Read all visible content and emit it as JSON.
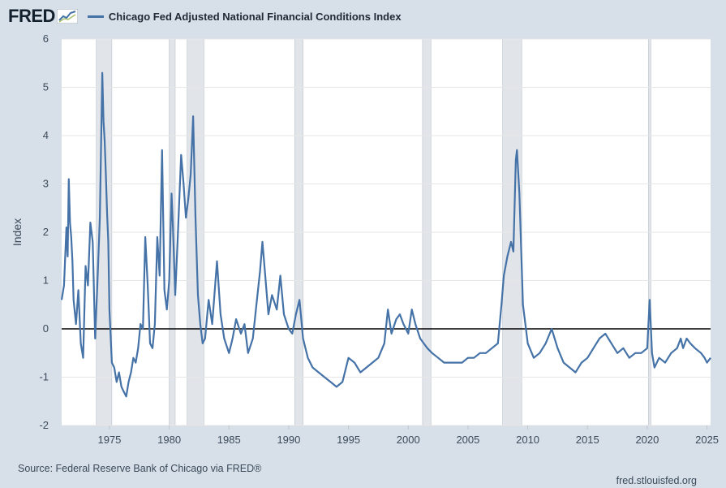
{
  "header": {
    "logo_text": "FRED",
    "logo_icon": "fred-graph-icon",
    "series_title": "Chicago Fed Adjusted National Financial Conditions Index"
  },
  "footer": {
    "source": "Source: Federal Reserve Bank of Chicago via FRED®",
    "url": "fred.stlouisfed.org"
  },
  "colors": {
    "background": "#d7dfe8",
    "plot_background": "#ffffff",
    "series": "#4572a7",
    "recession": "#e1e5ea",
    "grid": "#e6e6e6",
    "zero_line": "#000000"
  },
  "chart_data": {
    "type": "line",
    "title": "Chicago Fed Adjusted National Financial Conditions Index",
    "xlabel": "",
    "ylabel": "Index",
    "xlim": [
      1971.0,
      2025.3
    ],
    "ylim": [
      -2,
      6
    ],
    "x_ticks": [
      1975,
      1980,
      1985,
      1990,
      1995,
      2000,
      2005,
      2010,
      2015,
      2020,
      2025
    ],
    "y_ticks": [
      -2,
      -1,
      0,
      1,
      2,
      3,
      4,
      5,
      6
    ],
    "grid": "horizontal",
    "reference_line": 0,
    "recessions": [
      [
        1973.9,
        1975.2
      ],
      [
        1980.0,
        1980.5
      ],
      [
        1981.5,
        1982.9
      ],
      [
        1990.5,
        1991.2
      ],
      [
        2001.2,
        2001.9
      ],
      [
        2007.9,
        2009.5
      ],
      [
        2020.1,
        2020.3
      ]
    ],
    "series": [
      {
        "name": "Chicago Fed Adjusted National Financial Conditions Index",
        "x": [
          1971.0,
          1971.2,
          1971.4,
          1971.5,
          1971.6,
          1971.7,
          1971.8,
          1971.9,
          1972.0,
          1972.2,
          1972.4,
          1972.6,
          1972.8,
          1973.0,
          1973.2,
          1973.4,
          1973.6,
          1973.8,
          1974.0,
          1974.2,
          1974.4,
          1974.5,
          1974.6,
          1974.7,
          1974.8,
          1974.9,
          1975.0,
          1975.2,
          1975.4,
          1975.6,
          1975.8,
          1976.0,
          1976.2,
          1976.4,
          1976.6,
          1976.8,
          1977.0,
          1977.2,
          1977.4,
          1977.6,
          1977.8,
          1978.0,
          1978.2,
          1978.4,
          1978.6,
          1978.8,
          1979.0,
          1979.2,
          1979.4,
          1979.6,
          1979.8,
          1980.0,
          1980.2,
          1980.3,
          1980.5,
          1980.7,
          1981.0,
          1981.2,
          1981.4,
          1981.6,
          1981.8,
          1982.0,
          1982.2,
          1982.4,
          1982.6,
          1982.8,
          1983.0,
          1983.3,
          1983.6,
          1984.0,
          1984.3,
          1984.6,
          1985.0,
          1985.3,
          1985.6,
          1986.0,
          1986.3,
          1986.6,
          1987.0,
          1987.3,
          1987.6,
          1987.8,
          1988.0,
          1988.3,
          1988.6,
          1989.0,
          1989.3,
          1989.6,
          1990.0,
          1990.3,
          1990.6,
          1990.9,
          1991.2,
          1991.6,
          1992.0,
          1992.5,
          1993.0,
          1993.5,
          1994.0,
          1994.5,
          1995.0,
          1995.5,
          1996.0,
          1996.5,
          1997.0,
          1997.5,
          1998.0,
          1998.3,
          1998.6,
          1999.0,
          1999.3,
          1999.6,
          2000.0,
          2000.3,
          2000.6,
          2001.0,
          2001.3,
          2001.6,
          2002.0,
          2002.5,
          2003.0,
          2003.5,
          2004.0,
          2004.5,
          2005.0,
          2005.5,
          2006.0,
          2006.5,
          2007.0,
          2007.5,
          2007.8,
          2008.0,
          2008.3,
          2008.6,
          2008.8,
          2009.0,
          2009.1,
          2009.3,
          2009.6,
          2010.0,
          2010.5,
          2011.0,
          2011.5,
          2012.0,
          2012.5,
          2013.0,
          2013.5,
          2014.0,
          2014.5,
          2015.0,
          2015.5,
          2016.0,
          2016.5,
          2017.0,
          2017.5,
          2018.0,
          2018.5,
          2019.0,
          2019.5,
          2020.0,
          2020.2,
          2020.4,
          2020.6,
          2021.0,
          2021.5,
          2022.0,
          2022.5,
          2022.8,
          2023.0,
          2023.3,
          2023.6,
          2024.0,
          2024.5,
          2024.8,
          2025.0,
          2025.3
        ],
        "y": [
          0.6,
          0.9,
          2.1,
          1.5,
          3.1,
          2.2,
          1.9,
          1.4,
          0.6,
          0.1,
          0.8,
          -0.3,
          -0.6,
          1.3,
          0.9,
          2.2,
          1.8,
          -0.2,
          1.0,
          2.3,
          5.3,
          4.3,
          3.9,
          3.2,
          2.4,
          1.8,
          0.4,
          -0.7,
          -0.8,
          -1.1,
          -0.9,
          -1.2,
          -1.3,
          -1.4,
          -1.1,
          -0.9,
          -0.6,
          -0.7,
          -0.4,
          0.1,
          0.0,
          1.9,
          0.9,
          -0.3,
          -0.4,
          0.1,
          1.9,
          1.1,
          3.7,
          0.8,
          0.4,
          1.0,
          2.8,
          2.2,
          0.7,
          1.8,
          3.6,
          3.0,
          2.3,
          2.7,
          3.2,
          4.4,
          2.3,
          0.7,
          0.1,
          -0.3,
          -0.2,
          0.6,
          0.1,
          1.4,
          0.3,
          -0.2,
          -0.5,
          -0.2,
          0.2,
          -0.1,
          0.1,
          -0.5,
          -0.2,
          0.5,
          1.2,
          1.8,
          1.2,
          0.3,
          0.7,
          0.4,
          1.1,
          0.3,
          0.0,
          -0.1,
          0.3,
          0.6,
          -0.2,
          -0.6,
          -0.8,
          -0.9,
          -1.0,
          -1.1,
          -1.2,
          -1.1,
          -0.6,
          -0.7,
          -0.9,
          -0.8,
          -0.7,
          -0.6,
          -0.3,
          0.4,
          -0.1,
          0.2,
          0.3,
          0.1,
          -0.1,
          0.4,
          0.1,
          -0.2,
          -0.3,
          -0.4,
          -0.5,
          -0.6,
          -0.7,
          -0.7,
          -0.7,
          -0.7,
          -0.6,
          -0.6,
          -0.5,
          -0.5,
          -0.4,
          -0.3,
          0.5,
          1.1,
          1.5,
          1.8,
          1.6,
          3.5,
          3.7,
          2.8,
          0.5,
          -0.3,
          -0.6,
          -0.5,
          -0.3,
          0.0,
          -0.4,
          -0.7,
          -0.8,
          -0.9,
          -0.7,
          -0.6,
          -0.4,
          -0.2,
          -0.1,
          -0.3,
          -0.5,
          -0.4,
          -0.6,
          -0.5,
          -0.5,
          -0.4,
          0.6,
          -0.5,
          -0.8,
          -0.6,
          -0.7,
          -0.5,
          -0.4,
          -0.2,
          -0.4,
          -0.2,
          -0.3,
          -0.4,
          -0.5,
          -0.6,
          -0.7,
          -0.6
        ]
      }
    ]
  }
}
